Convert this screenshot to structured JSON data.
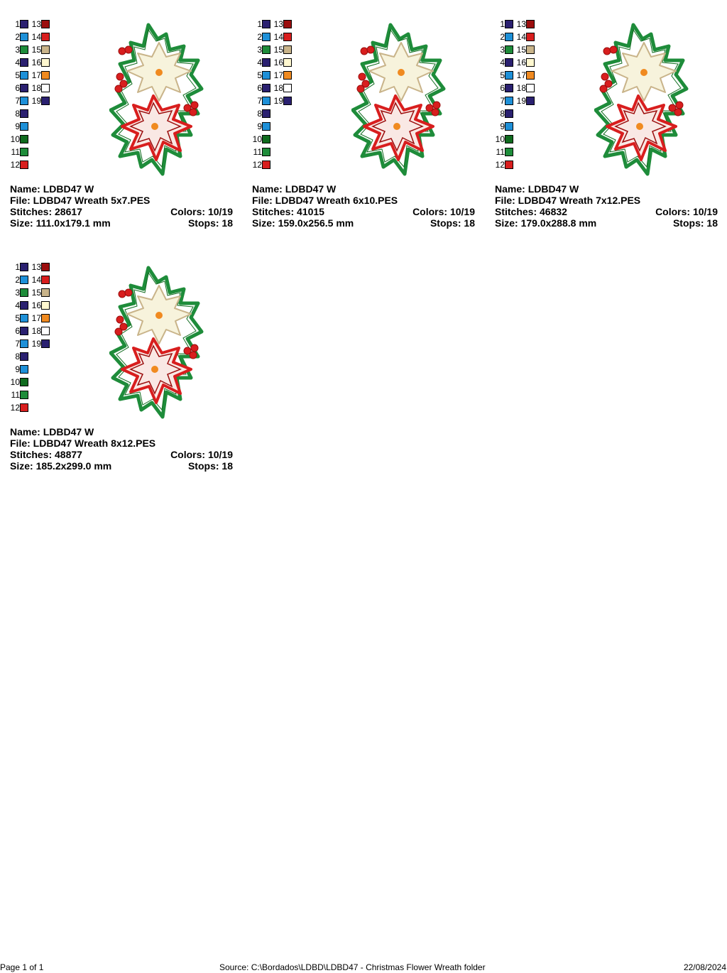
{
  "labels": {
    "name": "Name: ",
    "file": "File: ",
    "stitches": "Stitches: ",
    "size": "Size: ",
    "colors": "Colors: ",
    "stops": "Stops: "
  },
  "palette": [
    {
      "num": "1",
      "color": "#2a2070"
    },
    {
      "num": "2",
      "color": "#1e90d8"
    },
    {
      "num": "3",
      "color": "#1e8c3a"
    },
    {
      "num": "4",
      "color": "#2a2070"
    },
    {
      "num": "5",
      "color": "#1e90d8"
    },
    {
      "num": "6",
      "color": "#2a2070"
    },
    {
      "num": "7",
      "color": "#1e90d8"
    },
    {
      "num": "8",
      "color": "#2a2070"
    },
    {
      "num": "9",
      "color": "#1e90d8"
    },
    {
      "num": "10",
      "color": "#0f6b1e"
    },
    {
      "num": "11",
      "color": "#1e8c3a"
    },
    {
      "num": "12",
      "color": "#d81e1e"
    },
    {
      "num": "13",
      "color": "#9b0d0d"
    },
    {
      "num": "14",
      "color": "#d81e1e"
    },
    {
      "num": "15",
      "color": "#c9b48a"
    },
    {
      "num": "16",
      "color": "#fff8d0"
    },
    {
      "num": "17",
      "color": "#f08a20"
    },
    {
      "num": "18",
      "color": "#ffffff"
    },
    {
      "num": "19",
      "color": "#2a2070"
    }
  ],
  "designs": [
    {
      "name": "LDBD47 W",
      "file": "LDBD47 Wreath 5x7.PES",
      "stitches": "28617",
      "size": "111.0x179.1 mm",
      "colors": "10/19",
      "stops": "18"
    },
    {
      "name": "LDBD47 W",
      "file": "LDBD47 Wreath 6x10.PES",
      "stitches": "41015",
      "size": "159.0x256.5 mm",
      "colors": "10/19",
      "stops": "18"
    },
    {
      "name": "LDBD47 W",
      "file": "LDBD47 Wreath 7x12.PES",
      "stitches": "46832",
      "size": "179.0x288.8 mm",
      "colors": "10/19",
      "stops": "18"
    },
    {
      "name": "LDBD47 W",
      "file": "LDBD47 Wreath 8x12.PES",
      "stitches": "48877",
      "size": "185.2x299.0 mm",
      "colors": "10/19",
      "stops": "18"
    }
  ],
  "footer": {
    "page": "Page 1 of 1",
    "source": "Source: C:\\Bordados\\LDBD\\LDBD47 - Christmas Flower Wreath folder",
    "date": "22/08/2024"
  }
}
